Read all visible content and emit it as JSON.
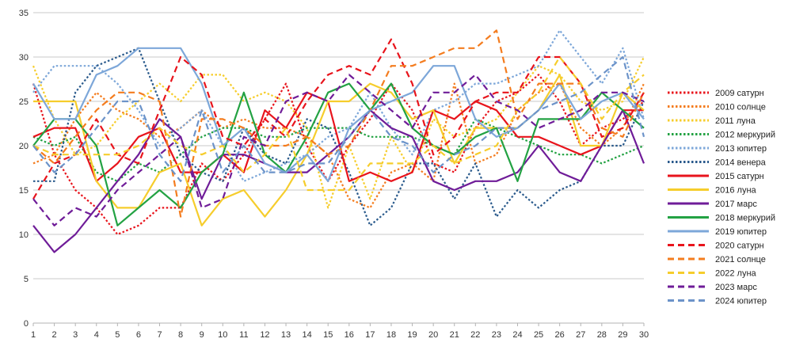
{
  "chart_data": {
    "type": "line",
    "title": "",
    "xlabel": "",
    "ylabel": "",
    "x": [
      1,
      2,
      3,
      4,
      5,
      6,
      7,
      8,
      9,
      10,
      11,
      12,
      13,
      14,
      15,
      16,
      17,
      18,
      19,
      20,
      21,
      22,
      23,
      24,
      25,
      26,
      27,
      28,
      29,
      30
    ],
    "xlim": [
      1,
      30
    ],
    "ylim": [
      0,
      35
    ],
    "y_ticks": [
      0,
      5,
      10,
      15,
      20,
      25,
      30,
      35
    ],
    "grid": "horizontal",
    "legend_position": "right",
    "series": [
      {
        "name": "2009 сатурн",
        "color": "#e8141c",
        "dash": "dot",
        "values": [
          27,
          19,
          15,
          13,
          10,
          11,
          13,
          13,
          18,
          16,
          19,
          23,
          27,
          20,
          16,
          20,
          23,
          27,
          24,
          18,
          17,
          22,
          25,
          26,
          28,
          25,
          20,
          22,
          23,
          25
        ]
      },
      {
        "name": "2010 солнце",
        "color": "#f47c1e",
        "dash": "dot",
        "values": [
          18,
          19,
          23,
          26,
          24,
          23,
          21,
          22,
          24,
          22,
          23,
          22,
          22,
          21,
          19,
          14,
          13,
          17,
          18,
          16,
          27,
          18,
          19,
          24,
          26,
          27,
          22,
          20,
          22,
          27
        ]
      },
      {
        "name": "2011 луна",
        "color": "#f6cd2c",
        "dash": "dot",
        "values": [
          29,
          23,
          19,
          20,
          23,
          25,
          27,
          25,
          28,
          28,
          25,
          26,
          25,
          22,
          13,
          20,
          14,
          21,
          17,
          23,
          21,
          22,
          23,
          26,
          29,
          28,
          25,
          24,
          25,
          30
        ]
      },
      {
        "name": "2012 меркурий",
        "color": "#23a243",
        "dash": "dot",
        "values": [
          21,
          20,
          21,
          17,
          16,
          18,
          17,
          19,
          21,
          22,
          22,
          21,
          21,
          22,
          22,
          22,
          21,
          21,
          21,
          20,
          19,
          23,
          22,
          21,
          20,
          19,
          19,
          18,
          19,
          20
        ]
      },
      {
        "name": "2013 юпитер",
        "color": "#7da7d9",
        "dash": "dot",
        "values": [
          26,
          29,
          29,
          29,
          27,
          24,
          20,
          22,
          24,
          20,
          16,
          17,
          18,
          19,
          21,
          22,
          26,
          22,
          19,
          24,
          25,
          27,
          27,
          28,
          29,
          33,
          30,
          27,
          31,
          23
        ]
      },
      {
        "name": "2014 венера",
        "color": "#2a5a8c",
        "dash": "dot",
        "values": [
          16,
          16,
          26,
          29,
          30,
          31,
          25,
          19,
          17,
          16,
          22,
          19,
          18,
          23,
          22,
          17,
          11,
          13,
          18,
          18,
          14,
          18,
          12,
          15,
          13,
          15,
          16,
          20,
          20,
          25
        ]
      },
      {
        "name": "2015 сатурн",
        "color": "#e8141c",
        "dash": "solid",
        "values": [
          21,
          22,
          22,
          16,
          18,
          21,
          22,
          17,
          17,
          19,
          17,
          24,
          22,
          26,
          25,
          16,
          17,
          16,
          17,
          24,
          23,
          25,
          24,
          21,
          21,
          20,
          19,
          20,
          24,
          24
        ]
      },
      {
        "name": "2016 луна",
        "color": "#f6cd2c",
        "dash": "solid",
        "values": [
          25,
          25,
          25,
          16,
          13,
          13,
          17,
          18,
          11,
          14,
          15,
          12,
          15,
          19,
          25,
          25,
          27,
          26,
          23,
          24,
          18,
          22,
          22,
          22,
          24,
          28,
          20,
          20,
          26,
          24
        ]
      },
      {
        "name": "2017 марс",
        "color": "#6f1c98",
        "dash": "solid",
        "values": [
          11,
          8,
          10,
          13,
          16,
          19,
          23,
          21,
          14,
          19,
          19,
          18,
          17,
          17,
          19,
          21,
          24,
          22,
          21,
          16,
          15,
          16,
          16,
          17,
          20,
          17,
          16,
          20,
          24,
          18
        ]
      },
      {
        "name": "2018 меркурий",
        "color": "#23a243",
        "dash": "solid",
        "values": [
          20,
          23,
          23,
          20,
          11,
          13,
          15,
          13,
          17,
          19,
          26,
          19,
          17,
          21,
          26,
          27,
          24,
          27,
          22,
          20,
          19,
          21,
          22,
          16,
          23,
          23,
          23,
          26,
          24,
          22
        ]
      },
      {
        "name": "2019 юпитер",
        "color": "#7da7d9",
        "dash": "solid",
        "values": [
          27,
          23,
          23,
          28,
          29,
          31,
          31,
          31,
          27,
          20,
          22,
          18,
          17,
          19,
          16,
          22,
          24,
          25,
          26,
          29,
          29,
          23,
          21,
          22,
          24,
          27,
          23,
          25,
          26,
          23
        ]
      },
      {
        "name": "2020 сатурн",
        "color": "#e8141c",
        "dash": "dash",
        "values": [
          14,
          18,
          19,
          23,
          19,
          18,
          24,
          30,
          28,
          21,
          20,
          23,
          21,
          25,
          28,
          29,
          28,
          32,
          27,
          19,
          21,
          25,
          26,
          26,
          30,
          30,
          27,
          21,
          22,
          26
        ]
      },
      {
        "name": "2021 солнце",
        "color": "#f47c1e",
        "dash": "dash",
        "values": [
          20,
          18,
          21,
          24,
          26,
          26,
          25,
          12,
          23,
          23,
          22,
          20,
          20,
          21,
          19,
          20,
          24,
          29,
          29,
          30,
          31,
          31,
          33,
          23,
          27,
          27,
          27,
          22,
          21,
          26
        ]
      },
      {
        "name": "2022 луна",
        "color": "#f6cd2c",
        "dash": "dash",
        "values": [
          20,
          19,
          19,
          19,
          19,
          20,
          22,
          20,
          19,
          20,
          17,
          19,
          22,
          15,
          15,
          15,
          18,
          18,
          18,
          20,
          18,
          19,
          20,
          24,
          26,
          30,
          27,
          23,
          26,
          28
        ]
      },
      {
        "name": "2023 марс",
        "color": "#6f1c98",
        "dash": "dash",
        "values": [
          14,
          11,
          13,
          12,
          15,
          17,
          19,
          21,
          13,
          14,
          21,
          20,
          25,
          26,
          25,
          28,
          26,
          24,
          22,
          26,
          26,
          28,
          25,
          24,
          22,
          23,
          24,
          26,
          26,
          25
        ]
      },
      {
        "name": "2024 юпитер",
        "color": "#6c93c9",
        "dash": "dash",
        "values": [
          20,
          17,
          19,
          22,
          25,
          25,
          19,
          16,
          24,
          17,
          20,
          17,
          17,
          18,
          18,
          21,
          24,
          21,
          20,
          17,
          19,
          20,
          22,
          22,
          24,
          25,
          26,
          28,
          30,
          21
        ]
      }
    ]
  }
}
